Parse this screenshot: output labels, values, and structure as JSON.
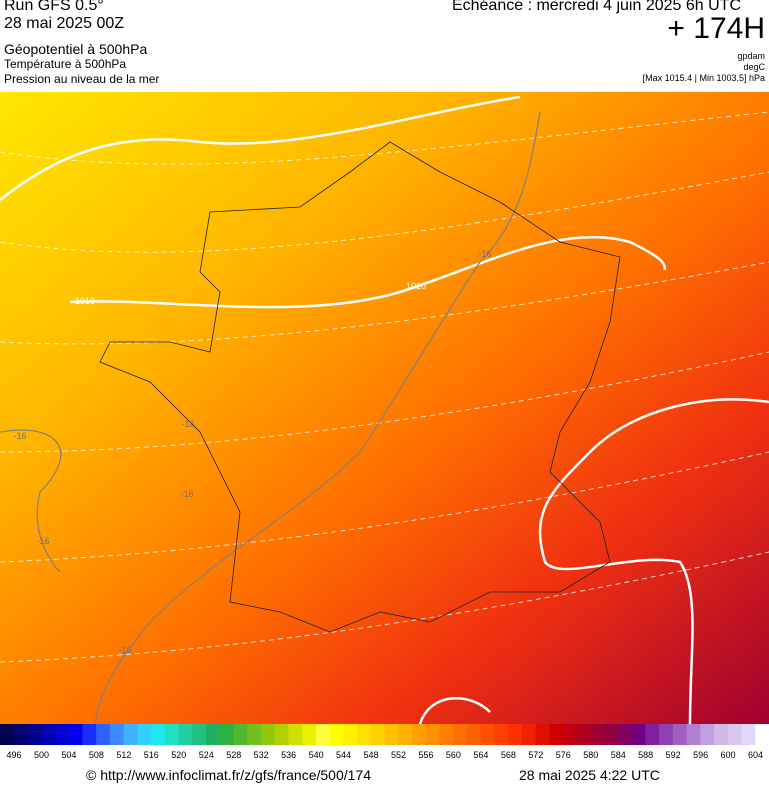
{
  "header": {
    "left": [
      "Run GFS 0.5°",
      "28 mai 2025 00Z",
      "Géopotentiel à 500hPa",
      "Température à 500hPa",
      "Pression au niveau de la mer"
    ],
    "validity": "Echéance : mercredi 4 juin 2025 6h UTC",
    "lead": "+ 174H",
    "units": [
      "gpdam",
      "degC",
      "[Max 1015.4 | Min 1003.5] hPa"
    ]
  },
  "map": {
    "contour_labels": [
      "1010",
      "1010",
      "-16",
      "-16",
      "-16",
      "-16",
      "-16",
      "-16"
    ]
  },
  "scale": {
    "values": [
      496,
      500,
      504,
      508,
      512,
      516,
      520,
      524,
      528,
      532,
      536,
      540,
      544,
      548,
      552,
      556,
      560,
      564,
      568,
      572,
      576,
      580,
      584,
      588,
      592,
      596,
      600,
      604
    ],
    "colors": [
      "#000050",
      "#000070",
      "#000090",
      "#0000b0",
      "#0000d0",
      "#0000f0",
      "#1830ff",
      "#3060ff",
      "#3c8cff",
      "#40b0ff",
      "#30d0ff",
      "#20e8f0",
      "#20e0c0",
      "#20d0a0",
      "#20c080",
      "#20b060",
      "#30b040",
      "#50b830",
      "#70c020",
      "#90c810",
      "#b0d000",
      "#d0e000",
      "#e8f000",
      "#ffff40",
      "#ffff00",
      "#fff000",
      "#ffe000",
      "#ffd000",
      "#ffc000",
      "#ffb000",
      "#ffa000",
      "#ff9000",
      "#ff8000",
      "#ff7000",
      "#ff6000",
      "#ff5000",
      "#ff4000",
      "#ff3000",
      "#f02000",
      "#e01000",
      "#d00000",
      "#c00010",
      "#b00020",
      "#a00030",
      "#900040",
      "#800060",
      "#700080",
      "#8020a0",
      "#9040b0",
      "#a060c0",
      "#b080d0",
      "#c0a0e0",
      "#d0b8e8",
      "#d8c8f0",
      "#e0d8f8",
      "#ffffff"
    ]
  },
  "footer": {
    "source": "© http://www.infoclimat.fr/z/gfs/france/500/174",
    "timestamp": "28 mai 2025  4:22 UTC"
  }
}
